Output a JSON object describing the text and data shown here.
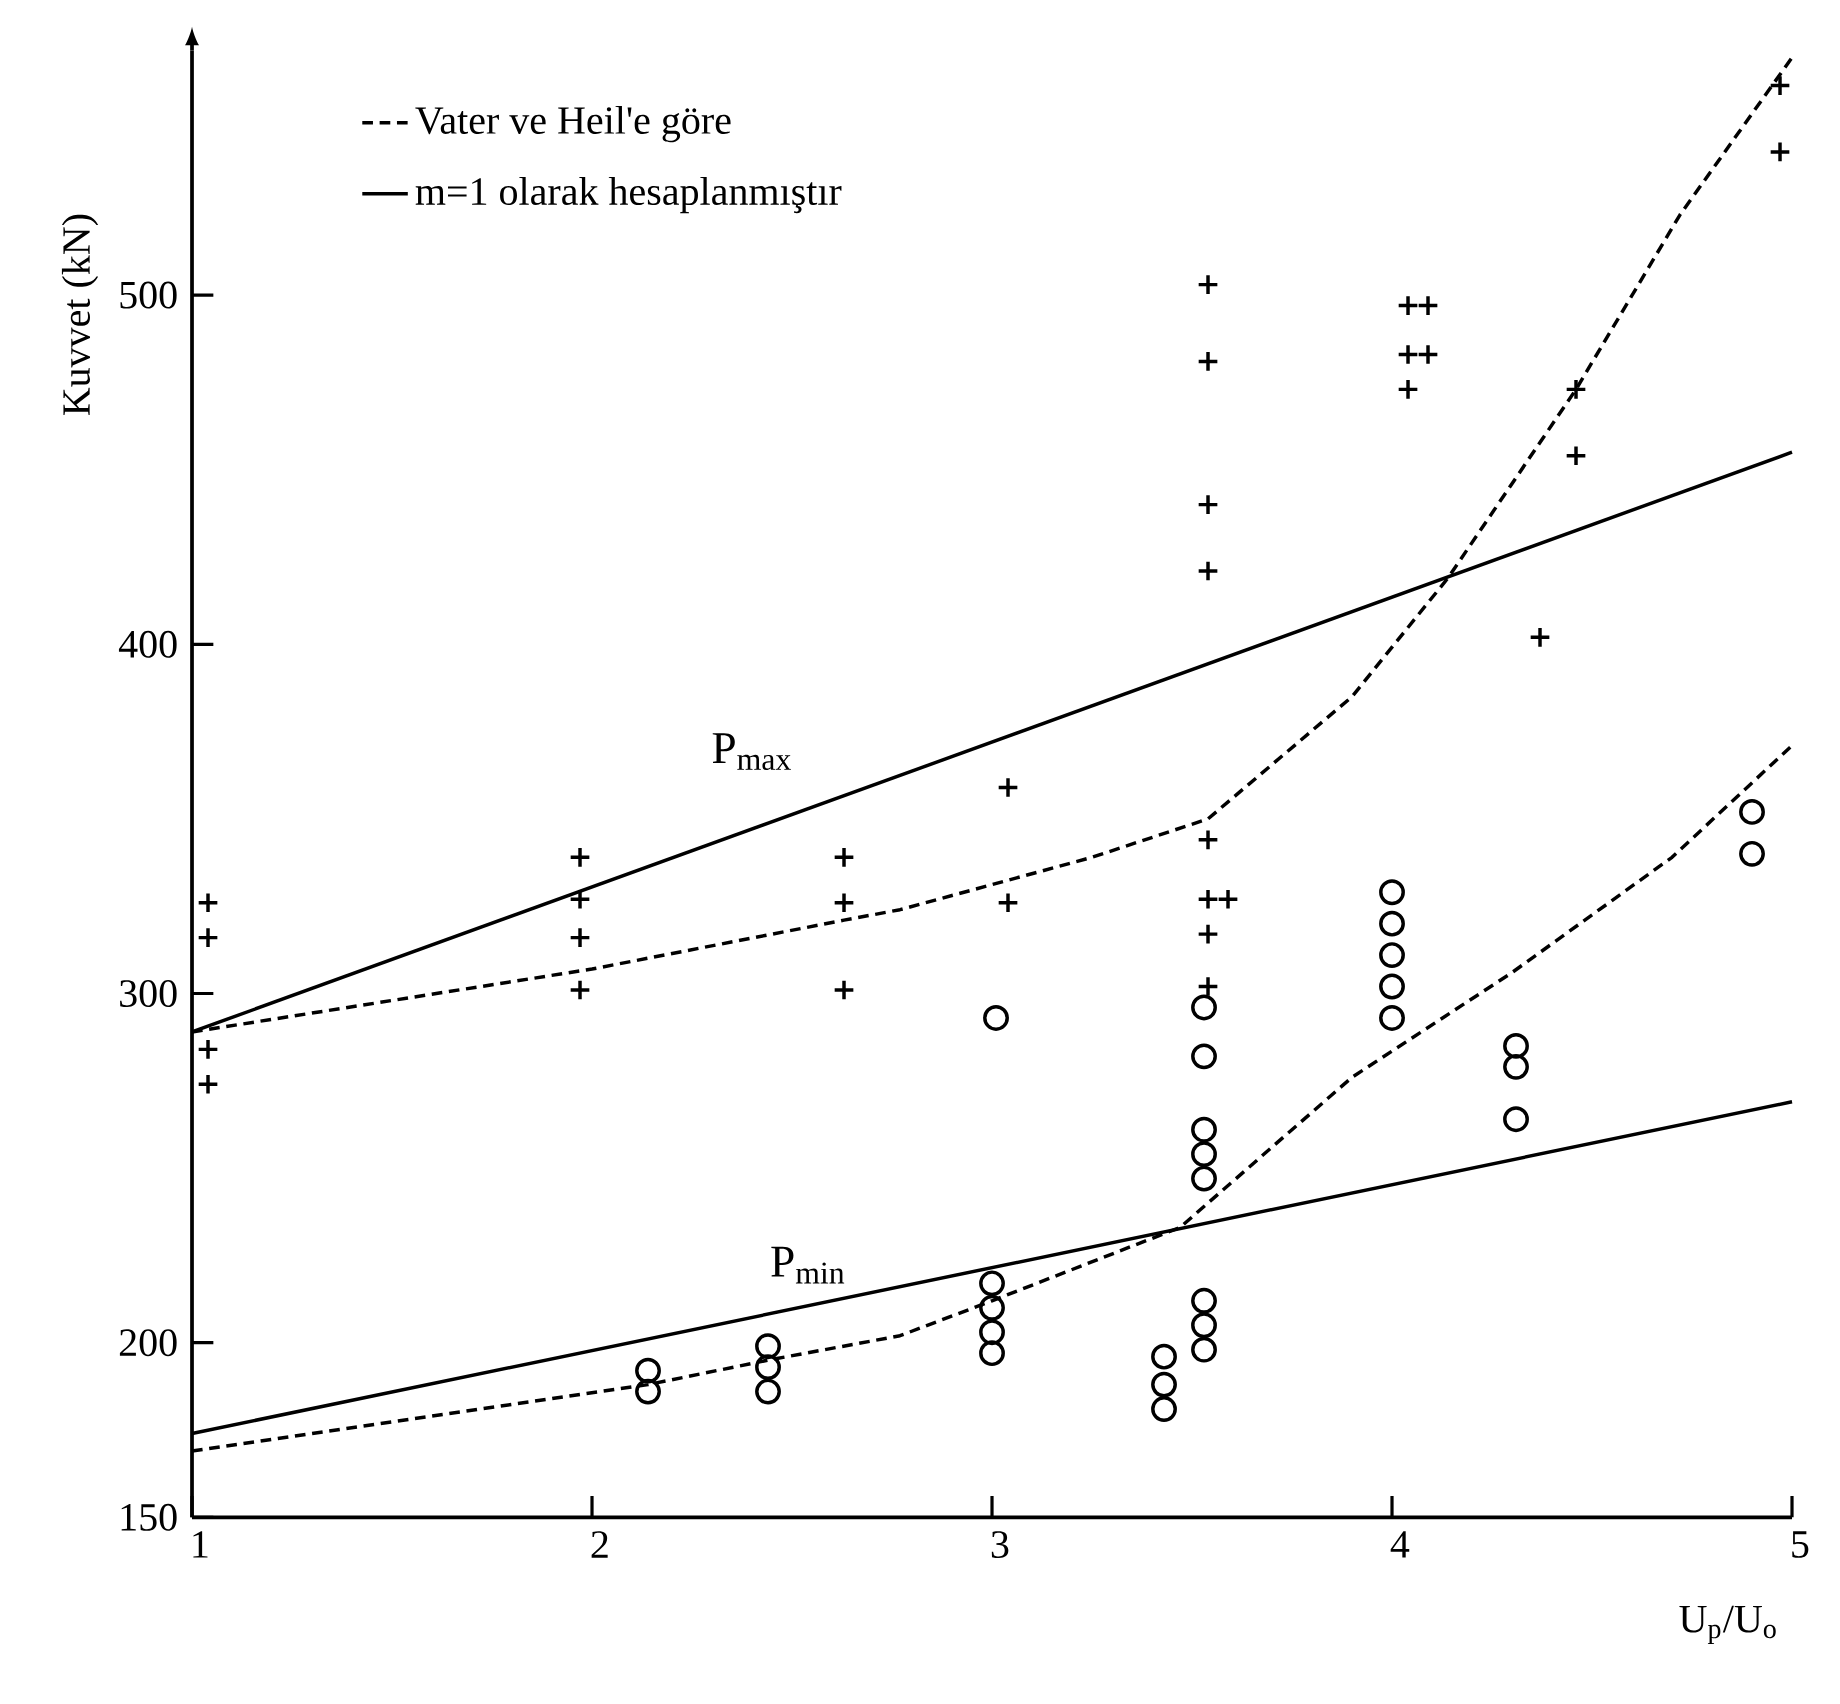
{
  "chart_data": {
    "type": "scatter",
    "xlabel": "U$_{p}$/U$_{o}$",
    "ylabel": "Kuvvet (kN)",
    "xlim": [
      1,
      5
    ],
    "ylim": [
      150,
      570
    ],
    "xticks": [
      1,
      2,
      3,
      4,
      5
    ],
    "yticks": [
      150,
      200,
      300,
      400,
      500
    ],
    "legend": "top left",
    "grid": false,
    "annotations": [
      "P$_{max}$",
      "P$_{min}$"
    ],
    "series": [
      {
        "type": "line",
        "name": "Vater ve Heil'e göre",
        "color": "#000000",
        "line_style": "dashed",
        "marker": "none",
        "x": [
          1,
          2,
          2.63,
          2.77,
          3.25,
          3.54,
          3.9,
          4.14,
          4.46,
          4.72,
          5.0
        ],
        "values": [
          289,
          307,
          321,
          324,
          339,
          350,
          385,
          419,
          473,
          523,
          568
        ]
      },
      {
        "type": "line",
        "name": "m=1 olarak hesaplanmıştır",
        "color": "#000000",
        "line_style": "solid",
        "marker": "none",
        "x": [
          1,
          5
        ],
        "values": [
          289,
          455
        ]
      },
      {
        "type": "line",
        "color": "#000000",
        "line_style": "dashed",
        "marker": "none",
        "x": [
          1,
          2.14,
          2.44,
          2.77,
          3.0,
          3.47,
          3.9,
          4.3,
          4.7,
          5.0
        ],
        "values": [
          169,
          188,
          195,
          202,
          212,
          233,
          276,
          306,
          339,
          371
        ]
      },
      {
        "type": "line",
        "color": "#000000",
        "line_style": "solid",
        "marker": "none",
        "x": [
          1,
          5
        ],
        "values": [
          174,
          269
        ]
      },
      {
        "type": "scatter",
        "color": "#000000",
        "marker": "cross",
        "x": [
          1.04,
          1.04,
          1.04,
          1.04,
          1.97,
          1.97,
          1.97,
          1.97,
          2.63,
          2.63,
          2.63,
          3.04,
          3.04,
          3.54,
          3.54,
          3.54,
          3.54,
          3.54,
          3.54,
          3.59,
          3.54,
          3.54,
          4.04,
          4.09,
          4.04,
          4.09,
          4.04,
          4.46,
          4.46,
          4.37,
          4.97,
          4.97
        ],
        "values": [
          326,
          316,
          284,
          274,
          339,
          327,
          316,
          301,
          339,
          326,
          301,
          359,
          326,
          503,
          481,
          440,
          421,
          344,
          327,
          327,
          317,
          302,
          497,
          497,
          483,
          483,
          473,
          473,
          454,
          402,
          560,
          541
        ]
      },
      {
        "type": "scatter",
        "color": "#000000",
        "marker": "circle",
        "x": [
          2.14,
          2.14,
          2.44,
          2.44,
          2.44,
          3.01,
          3.0,
          3.0,
          3.0,
          3.0,
          3.53,
          3.53,
          3.53,
          3.53,
          3.53,
          3.53,
          3.53,
          3.53,
          3.43,
          3.43,
          3.43,
          4.0,
          4.0,
          4.0,
          4.0,
          4.0,
          4.31,
          4.31,
          4.31,
          4.9,
          4.9
        ],
        "values": [
          192,
          186,
          199,
          193,
          186,
          293,
          217,
          210,
          203,
          197,
          296,
          282,
          261,
          254,
          247,
          212,
          205,
          198,
          196,
          188,
          181,
          329,
          320,
          311,
          302,
          293,
          285,
          279,
          264,
          352,
          340
        ]
      }
    ]
  }
}
